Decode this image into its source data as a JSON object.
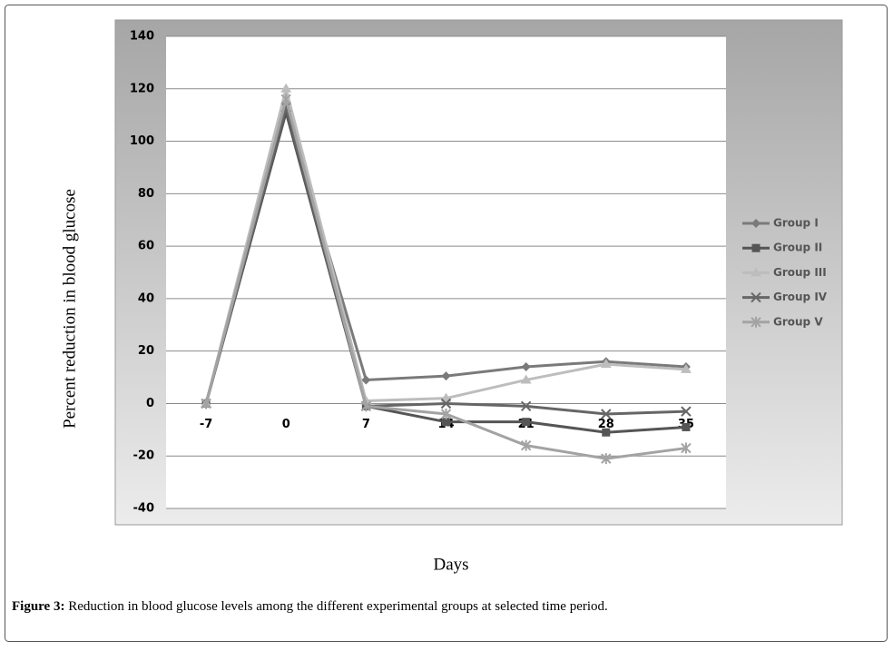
{
  "chart_data": {
    "type": "line",
    "y_label": "Percent reduction in blood glucose",
    "x_label": "Days",
    "categories": [
      "-7",
      "0",
      "7",
      "14",
      "21",
      "28",
      "35"
    ],
    "series": [
      {
        "name": "Group I",
        "color": "#7a7a7a",
        "marker": "diamond",
        "values": [
          0,
          112,
          9,
          10.5,
          14,
          16,
          14
        ]
      },
      {
        "name": "Group II",
        "color": "#555555",
        "marker": "square",
        "values": [
          0,
          111,
          -1,
          -7,
          -7,
          -11,
          -9
        ]
      },
      {
        "name": "Group III",
        "color": "#bdbdbd",
        "marker": "triangle",
        "values": [
          0,
          120,
          1,
          2,
          9,
          15,
          13
        ]
      },
      {
        "name": "Group IV",
        "color": "#666666",
        "marker": "x",
        "values": [
          0,
          113,
          -1,
          0,
          -1,
          -4,
          -3
        ]
      },
      {
        "name": "Group V",
        "color": "#a3a3a3",
        "marker": "star",
        "values": [
          0,
          116,
          -1,
          -4,
          -16,
          -21,
          -17
        ]
      }
    ],
    "ylim": [
      -40,
      140
    ],
    "yticks": [
      -40,
      -20,
      0,
      20,
      40,
      60,
      80,
      100,
      120,
      140
    ],
    "grid": true,
    "legend": "right"
  },
  "caption": {
    "label": "Figure 3:",
    "text": " Reduction in blood glucose levels among the different experimental groups at selected time period."
  }
}
